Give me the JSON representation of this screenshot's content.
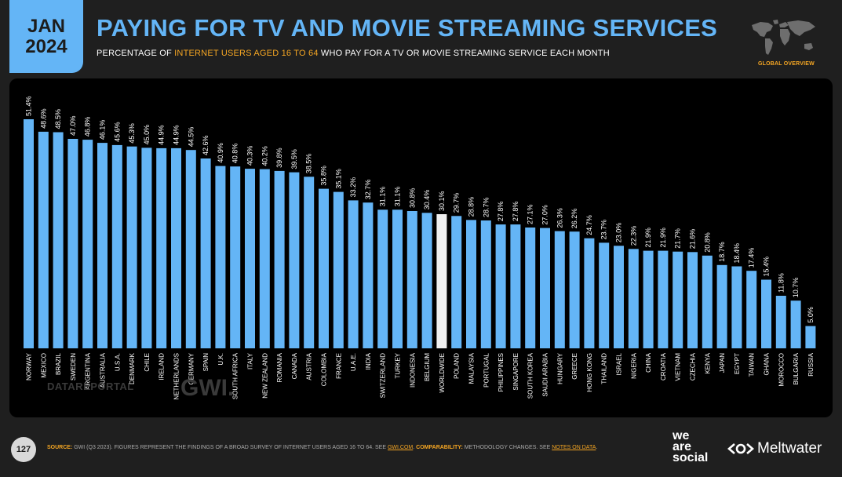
{
  "header": {
    "date_line1": "JAN",
    "date_line2": "2024",
    "title": "PAYING FOR TV AND MOVIE STREAMING SERVICES",
    "subtitle_part1": "PERCENTAGE OF ",
    "subtitle_highlight": "INTERNET USERS AGED 16 TO 64",
    "subtitle_part2": " WHO PAY FOR A TV OR MOVIE STREAMING SERVICE EACH MONTH",
    "global_overview": "GLOBAL OVERVIEW",
    "map_icon": "world-map-icon"
  },
  "watermark": {
    "datareportal": "DATAREPORTAL",
    "gwi": "GWI."
  },
  "footer": {
    "page_number": "127",
    "source_label": "SOURCE:",
    "source_text": " GWI (Q3 2023). FIGURES REPRESENT THE FINDINGS OF A BROAD SURVEY OF INTERNET USERS AGED 16 TO 64. SEE ",
    "source_link": "GWI.COM",
    "source_sep": ". ",
    "comparability_label": "COMPARABILITY:",
    "comparability_text": " METHODOLOGY CHANGES. SEE ",
    "notes_link": "NOTES ON DATA",
    "notes_end": ".",
    "logo_we": "we",
    "logo_are": "are",
    "logo_social": "social",
    "logo_meltwater": "Meltwater"
  },
  "colors": {
    "bar": "#64b5f6",
    "highlight_bar": "#f0f0f0",
    "accent": "#f5a623",
    "title": "#64b5f6",
    "panel": "#000000",
    "background": "#1f1f1f"
  },
  "chart_data": {
    "type": "bar",
    "categories": [
      "NORWAY",
      "MEXICO",
      "BRAZIL",
      "SWEDEN",
      "ARGENTINA",
      "AUSTRALIA",
      "U.S.A.",
      "DENMARK",
      "CHILE",
      "IRELAND",
      "NETHERLANDS",
      "GERMANY",
      "SPAIN",
      "U.K.",
      "SOUTH AFRICA",
      "ITALY",
      "NEW ZEALAND",
      "ROMANIA",
      "CANADA",
      "AUSTRIA",
      "COLOMBIA",
      "FRANCE",
      "U.A.E.",
      "INDIA",
      "SWITZERLAND",
      "TURKEY",
      "INDONESIA",
      "BELGIUM",
      "WORLDWIDE",
      "POLAND",
      "MALAYSIA",
      "PORTUGAL",
      "PHILIPPINES",
      "SINGAPORE",
      "SOUTH KOREA",
      "SAUDI ARABIA",
      "HUNGARY",
      "GREECE",
      "HONG KONG",
      "THAILAND",
      "ISRAEL",
      "NIGERIA",
      "CHINA",
      "CROATIA",
      "VIETNAM",
      "CZECHIA",
      "KENYA",
      "JAPAN",
      "EGYPT",
      "TAIWAN",
      "GHANA",
      "MOROCCO",
      "BULGARIA",
      "RUSSIA"
    ],
    "values": [
      51.4,
      48.6,
      48.5,
      47.0,
      46.8,
      46.1,
      45.6,
      45.3,
      45.0,
      44.9,
      44.9,
      44.5,
      42.6,
      40.9,
      40.8,
      40.3,
      40.2,
      39.8,
      39.5,
      38.5,
      35.8,
      35.1,
      33.2,
      32.7,
      31.1,
      31.1,
      30.8,
      30.4,
      30.1,
      29.7,
      28.8,
      28.7,
      27.8,
      27.8,
      27.1,
      27.0,
      26.3,
      26.2,
      24.7,
      23.7,
      23.0,
      22.3,
      21.9,
      21.9,
      21.7,
      21.6,
      20.8,
      18.7,
      18.4,
      17.4,
      15.4,
      11.8,
      10.7,
      5.0
    ],
    "value_labels": [
      "51.4%",
      "48.6%",
      "48.5%",
      "47.0%",
      "46.8%",
      "46.1%",
      "45.6%",
      "45.3%",
      "45.0%",
      "44.9%",
      "44.9%",
      "44.5%",
      "42.6%",
      "40.9%",
      "40.8%",
      "40.3%",
      "40.2%",
      "39.8%",
      "39.5%",
      "38.5%",
      "35.8%",
      "35.1%",
      "33.2%",
      "32.7%",
      "31.1%",
      "31.1%",
      "30.8%",
      "30.4%",
      "30.1%",
      "29.7%",
      "28.8%",
      "28.7%",
      "27.8%",
      "27.8%",
      "27.1%",
      "27.0%",
      "26.3%",
      "26.2%",
      "24.7%",
      "23.7%",
      "23.0%",
      "22.3%",
      "21.9%",
      "21.9%",
      "21.7%",
      "21.6%",
      "20.8%",
      "18.7%",
      "18.4%",
      "17.4%",
      "15.4%",
      "11.8%",
      "10.7%",
      "5.0%"
    ],
    "highlight_category": "WORLDWIDE",
    "ylim": [
      0,
      51.4
    ],
    "grid": false,
    "legend": "none"
  }
}
